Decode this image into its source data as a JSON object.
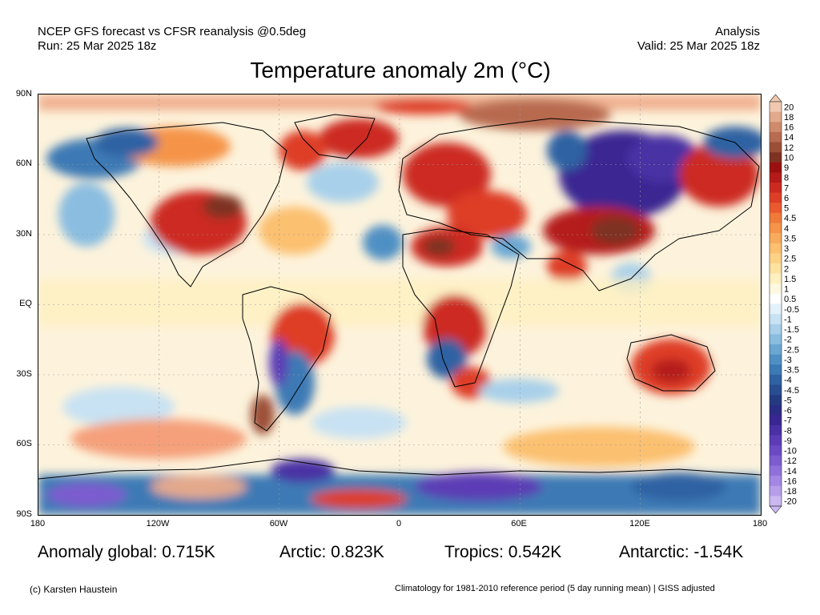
{
  "header": {
    "left_line1": "NCEP GFS forecast vs CFSR reanalysis @0.5deg",
    "left_line2": "Run: 25 Mar 2025 18z",
    "right_line1": "Analysis",
    "right_line2": "Valid: 25 Mar 2025 18z"
  },
  "title": "Temperature anomaly 2m (°C)",
  "axes": {
    "lat_labels": [
      "90N",
      "60N",
      "30N",
      "EQ",
      "30S",
      "60S",
      "90S"
    ],
    "lon_labels": [
      "180",
      "120W",
      "60W",
      "0",
      "60E",
      "120E",
      "180"
    ]
  },
  "colorbar": {
    "levels": [
      "20",
      "18",
      "16",
      "14",
      "12",
      "10",
      "9",
      "8",
      "7",
      "6",
      "5",
      "4.5",
      "4",
      "3.5",
      "3",
      "2.5",
      "2",
      "1.5",
      "1",
      "0.5",
      "-0.5",
      "-1",
      "-1.5",
      "-2",
      "-2.5",
      "-3",
      "-3.5",
      "-4",
      "-4.5",
      "-5",
      "-6",
      "-7",
      "-8",
      "-9",
      "-10",
      "-12",
      "-14",
      "-16",
      "-18",
      "-20"
    ],
    "colors": [
      "#f0c8b0",
      "#e3a98c",
      "#cf8a6c",
      "#b86b50",
      "#9c4f37",
      "#7e3221",
      "#9a1010",
      "#b51a1a",
      "#cc2a20",
      "#de3e26",
      "#ea5a30",
      "#f07a3a",
      "#f59448",
      "#f8ab5c",
      "#fbc070",
      "#fcd287",
      "#fde2a0",
      "#fef0c0",
      "#fff8e0",
      "#ffffff",
      "#e4f1fa",
      "#c8e2f3",
      "#a8d0ea",
      "#8abde0",
      "#6aa7d3",
      "#4f90c4",
      "#3c7ab5",
      "#2f62a3",
      "#284d91",
      "#243b82",
      "#2b2c84",
      "#3a2692",
      "#4a30a4",
      "#5b3cb5",
      "#6b4ac4",
      "#7c5ccf",
      "#9070da",
      "#a486e3",
      "#b79eeb",
      "#cbb8f2"
    ]
  },
  "stats": {
    "global": "Anomaly global: 0.715K",
    "arctic": "Arctic: 0.823K",
    "tropics": "Tropics: 0.542K",
    "antarctic": "Antarctic: -1.54K"
  },
  "footer": {
    "credit": "(c) Karsten Haustein",
    "note": "Climatology for 1981-2010 reference period (5 day running mean) | GISS adjusted"
  }
}
